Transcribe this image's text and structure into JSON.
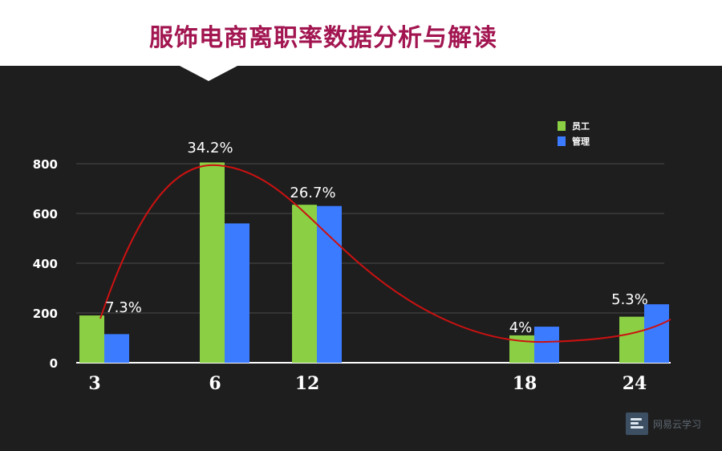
{
  "header": {
    "title": "服饰电商离职率数据分析与解读"
  },
  "colors": {
    "title": "#a21550",
    "series_employee": "#8bcf45",
    "series_manager": "#3b7bff",
    "trend": "#cc1111"
  },
  "chart_data": {
    "type": "bar",
    "categories": [
      "3",
      "6",
      "12",
      "18",
      "24"
    ],
    "x_positions": [
      3,
      6,
      12,
      18,
      24
    ],
    "series": [
      {
        "name": "员工",
        "values": [
          190,
          805,
          635,
          110,
          185
        ]
      },
      {
        "name": "管理",
        "values": [
          115,
          560,
          630,
          145,
          235
        ]
      }
    ],
    "percent_labels": [
      "7.3%",
      "34.2%",
      "26.7%",
      "4%",
      "5.3%"
    ],
    "yticks": [
      0,
      200,
      400,
      600,
      800
    ],
    "ylim": [
      0,
      800
    ],
    "trend_line": true,
    "grid": true,
    "legend_position": "top-right"
  },
  "watermark": {
    "text": "网易云学习"
  }
}
